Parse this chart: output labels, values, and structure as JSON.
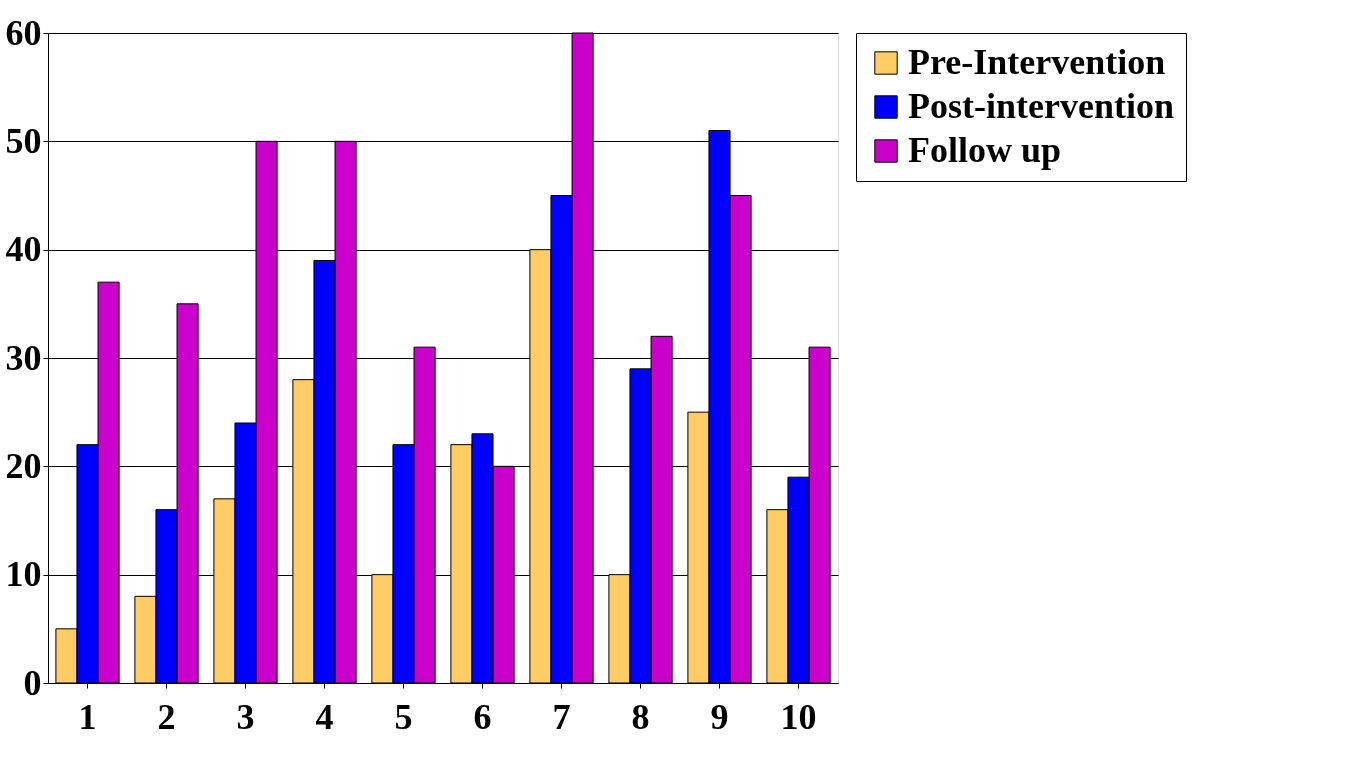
{
  "chart_data": {
    "type": "bar",
    "categories": [
      "1",
      "2",
      "3",
      "4",
      "5",
      "6",
      "7",
      "8",
      "9",
      "10"
    ],
    "series": [
      {
        "name": "Pre-Intervention",
        "color": "#ffcc66",
        "values": [
          5,
          8,
          17,
          28,
          10,
          22,
          40,
          10,
          25,
          16
        ]
      },
      {
        "name": "Post-intervention",
        "color": "#0000ff",
        "values": [
          22,
          16,
          24,
          39,
          22,
          23,
          45,
          29,
          51,
          19
        ]
      },
      {
        "name": "Follow up",
        "color": "#cc00cc",
        "values": [
          37,
          35,
          50,
          50,
          31,
          20,
          60,
          32,
          45,
          31
        ]
      }
    ],
    "ylim": [
      0,
      60
    ],
    "yticks": [
      0,
      10,
      20,
      30,
      40,
      50,
      60
    ],
    "grid": "y",
    "legend": "right"
  }
}
